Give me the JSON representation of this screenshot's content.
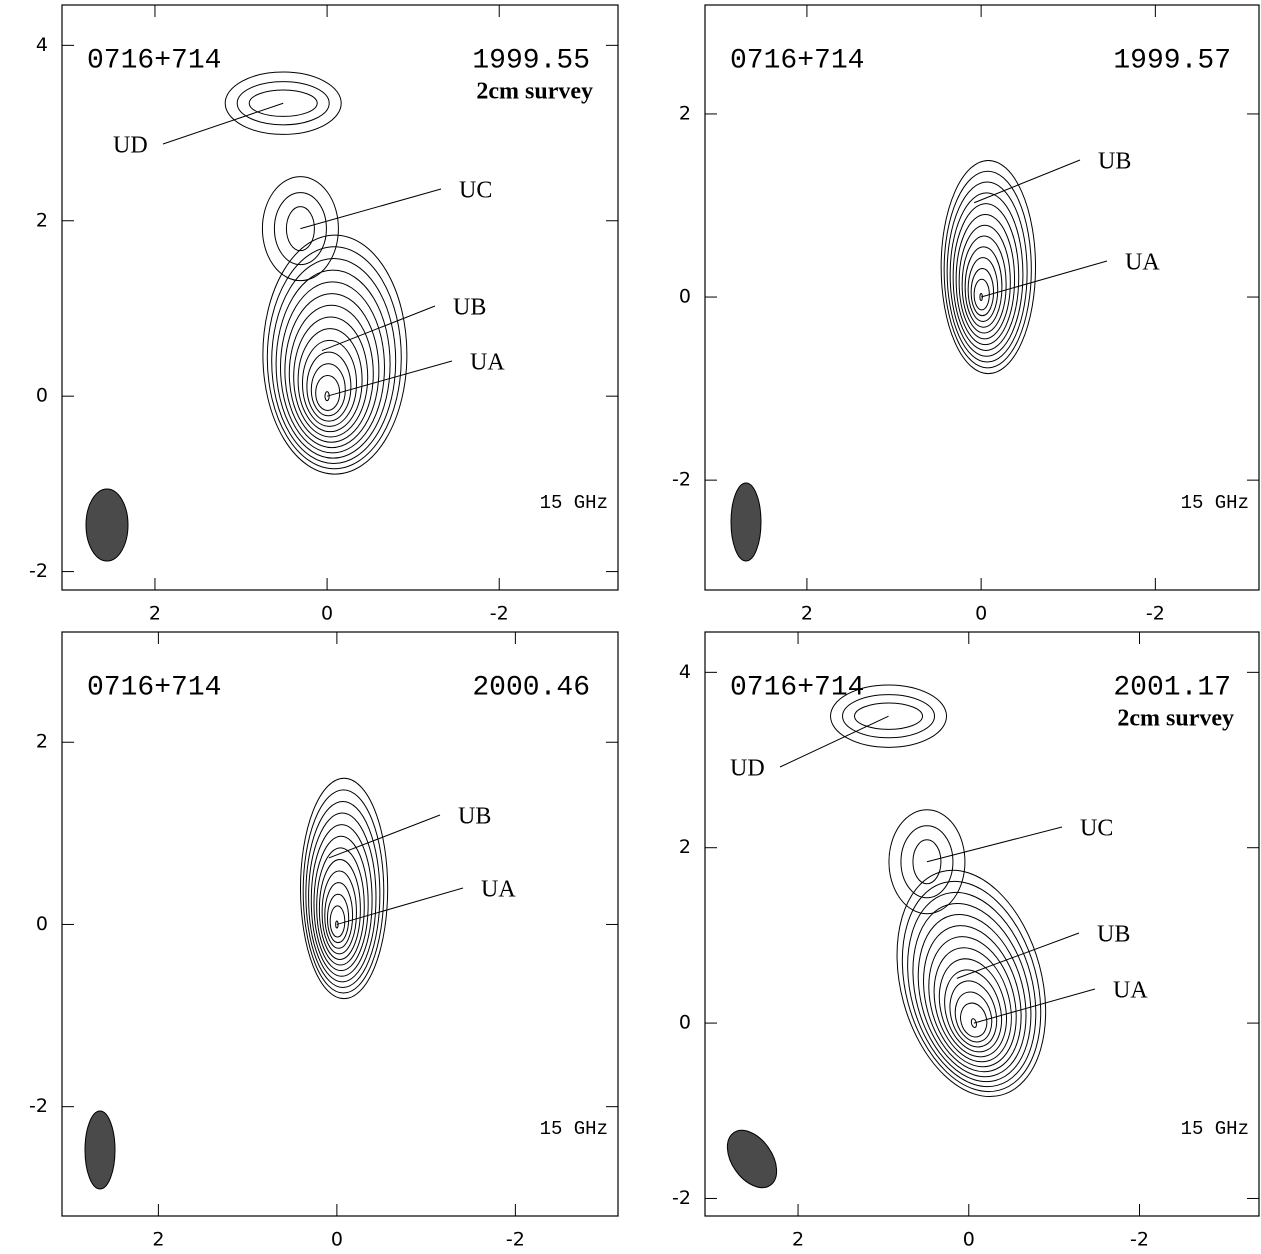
{
  "chart_data": [
    {
      "type": "contour",
      "title": "0716+714",
      "epoch": "1999.55",
      "survey": "2cm survey",
      "frequency": "15 GHz",
      "xlim": [
        3.08,
        -3.38
      ],
      "ylim": [
        -2.21,
        4.46
      ],
      "xticks": [
        2,
        0,
        -2
      ],
      "yticks": [
        -2,
        0,
        2,
        4
      ],
      "components": [
        {
          "label": "UD",
          "x": 0.51,
          "y": 3.34
        },
        {
          "label": "UC",
          "x": 0.31,
          "y": 1.91
        },
        {
          "label": "UB",
          "x": 0.06,
          "y": 0.52
        },
        {
          "label": "UA",
          "x": 0,
          "y": 0
        }
      ]
    },
    {
      "type": "contour",
      "title": "0716+714",
      "epoch": "1999.57",
      "frequency": "15 GHz",
      "xlim": [
        3.17,
        -3.19
      ],
      "ylim": [
        -3.2,
        3.19
      ],
      "xticks": [
        2,
        0,
        -2
      ],
      "yticks": [
        -2,
        0,
        2
      ],
      "components": [
        {
          "label": "UB",
          "x": 0.08,
          "y": 1.03
        },
        {
          "label": "UA",
          "x": 0,
          "y": 0
        }
      ]
    },
    {
      "type": "contour",
      "title": "0716+714",
      "epoch": "2000.46",
      "frequency": "15 GHz",
      "xlim": [
        3.08,
        -3.15
      ],
      "ylim": [
        -3.2,
        3.21
      ],
      "xticks": [
        2,
        0,
        -2
      ],
      "yticks": [
        -2,
        0,
        2
      ],
      "components": [
        {
          "label": "UB",
          "x": 0.09,
          "y": 0.73
        },
        {
          "label": "UA",
          "x": 0,
          "y": 0
        }
      ]
    },
    {
      "type": "contour",
      "title": "0716+714",
      "epoch": "2001.17",
      "survey": "2cm survey",
      "frequency": "15 GHz",
      "xlim": [
        3.09,
        -3.4
      ],
      "ylim": [
        -2.2,
        4.46
      ],
      "xticks": [
        2,
        0,
        -2
      ],
      "yticks": [
        -2,
        0,
        2,
        4
      ],
      "components": [
        {
          "label": "UD",
          "x": 0.94,
          "y": 3.5
        },
        {
          "label": "UC",
          "x": 0.49,
          "y": 1.84
        },
        {
          "label": "UB",
          "x": 0.14,
          "y": 0.51
        },
        {
          "label": "UA",
          "x": -0.06,
          "y": 0
        }
      ]
    }
  ]
}
